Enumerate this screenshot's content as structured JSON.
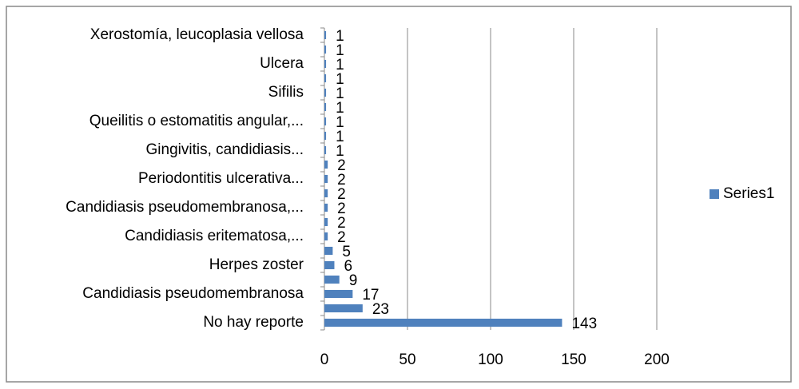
{
  "chart_data": {
    "type": "hbar",
    "categories": [
      "No hay reporte",
      null,
      "Candidiasis pseudomembranosa",
      null,
      "Herpes zoster",
      null,
      "Candidiasis eritematosa,...",
      null,
      "Candidiasis pseudomembranosa,...",
      null,
      "Periodontitis ulcerativa...",
      null,
      "Gingivitis, candidiasis...",
      null,
      "Queilitis o estomatitis angular,...",
      null,
      "Sifilis",
      null,
      "Ulcera",
      null,
      "Xerostomía, leucoplasia vellosa"
    ],
    "series": [
      {
        "name": "Series1",
        "color": "#4f81bd",
        "values": [
          143,
          23,
          17,
          9,
          6,
          5,
          2,
          2,
          2,
          2,
          2,
          2,
          1,
          1,
          1,
          1,
          1,
          1,
          1,
          1,
          1
        ]
      }
    ],
    "xlim": [
      0,
      200
    ],
    "xticks": [
      0,
      50,
      100,
      150,
      200
    ],
    "grid": true,
    "legend": "right"
  }
}
